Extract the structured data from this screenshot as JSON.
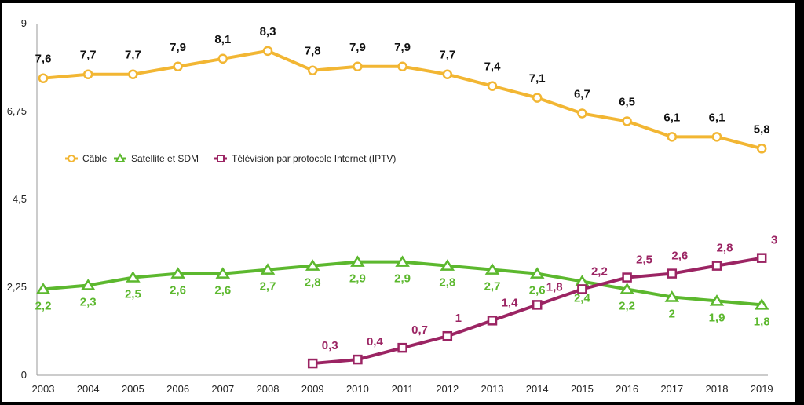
{
  "chart_data": {
    "type": "line",
    "x": [
      "2003",
      "2004",
      "2005",
      "2006",
      "2007",
      "2008",
      "2009",
      "2010",
      "2011",
      "2012",
      "2013",
      "2014",
      "2015",
      "2016",
      "2017",
      "2018",
      "2019"
    ],
    "y_ticks": [
      "0",
      "2,25",
      "4,5",
      "6,75",
      "9"
    ],
    "ylim": [
      0,
      9
    ],
    "grid": false,
    "legend_position": "middle-left",
    "series": [
      {
        "name": "Câble",
        "color": "#F2B633",
        "marker": "circle",
        "values": [
          7.6,
          7.7,
          7.7,
          7.9,
          8.1,
          8.3,
          7.8,
          7.9,
          7.9,
          7.7,
          7.4,
          7.1,
          6.7,
          6.5,
          6.1,
          6.1,
          5.8
        ],
        "labels": [
          "7,6",
          "7,7",
          "7,7",
          "7,9",
          "8,1",
          "8,3",
          "7,8",
          "7,9",
          "7,9",
          "7,7",
          "7,4",
          "7,1",
          "6,7",
          "6,5",
          "6,1",
          "6,1",
          "5,8"
        ]
      },
      {
        "name": "Satellite et SDM",
        "color": "#5CB82E",
        "marker": "triangle",
        "values": [
          2.2,
          2.3,
          2.5,
          2.6,
          2.6,
          2.7,
          2.8,
          2.9,
          2.9,
          2.8,
          2.7,
          2.6,
          2.4,
          2.2,
          2.0,
          1.9,
          1.8
        ],
        "labels": [
          "2,2",
          "2,3",
          "2,5",
          "2,6",
          "2,6",
          "2,7",
          "2,8",
          "2,9",
          "2,9",
          "2,8",
          "2,7",
          "2,6",
          "2,4",
          "2,2",
          "2",
          "1,9",
          "1,8"
        ]
      },
      {
        "name": "Télévision par protocole Internet (IPTV)",
        "color": "#9B2463",
        "marker": "square",
        "values": [
          null,
          null,
          null,
          null,
          null,
          null,
          0.3,
          0.4,
          0.7,
          1.0,
          1.4,
          1.8,
          2.2,
          2.5,
          2.6,
          2.8,
          3.0
        ],
        "labels": [
          null,
          null,
          null,
          null,
          null,
          null,
          "0,3",
          "0,4",
          "0,7",
          "1",
          "1,4",
          "1,8",
          "2,2",
          "2,5",
          "2,6",
          "2,8",
          "3"
        ]
      }
    ]
  }
}
